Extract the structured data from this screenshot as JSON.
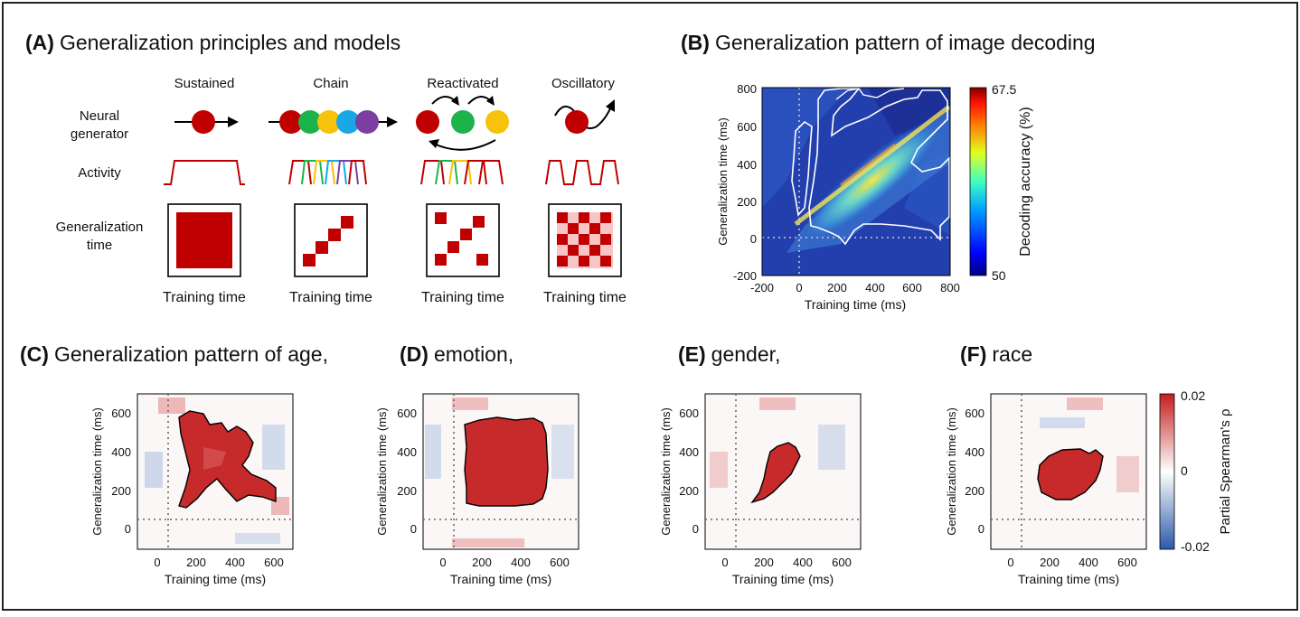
{
  "panelA": {
    "title_letter": "(A)",
    "title_text": "Generalization principles and models",
    "columns": [
      "Sustained",
      "Chain",
      "Reactivated",
      "Oscillatory"
    ],
    "row_labels": {
      "neural_line1": "Neural",
      "neural_line2": "generator",
      "activity": "Activity",
      "gen_line1": "Generalization",
      "gen_line2": "time"
    },
    "xlabel": "Training time",
    "colors": {
      "red": "#c00000",
      "green": "#1db34b",
      "yellow": "#f6c20a",
      "cyan": "#1aa7e6",
      "purple": "#7a3fa0",
      "pink": "#f7c5c5"
    }
  },
  "panelB": {
    "title_letter": "(B)",
    "title_text": "Generalization pattern of image decoding",
    "chart_data": {
      "type": "heatmap",
      "xlabel": "Training time (ms)",
      "ylabel": "Generalization  time (ms)",
      "xticks": [
        "-200",
        "0",
        "200",
        "400",
        "600",
        "800"
      ],
      "yticks": [
        "800",
        "600",
        "400",
        "200",
        "0",
        "-200"
      ],
      "xlim": [
        -200,
        800
      ],
      "ylim": [
        -200,
        800
      ],
      "colorbar_label": "Decoding accuracy (%)",
      "colorbar_ticks": [
        "67.5",
        "50"
      ],
      "colorbar_range": [
        50,
        67.5
      ]
    }
  },
  "subpanels": [
    {
      "id": "C",
      "title_letter": "(C)",
      "title_text": "Generalization pattern of age,"
    },
    {
      "id": "D",
      "title_letter": "(D)",
      "title_text": "emotion,"
    },
    {
      "id": "E",
      "title_letter": "(E)",
      "title_text": "gender,"
    },
    {
      "id": "F",
      "title_letter": "(F)",
      "title_text": "race"
    }
  ],
  "chart_data": [
    {
      "type": "heatmap",
      "name": "C",
      "xlabel": "Training time (ms)",
      "ylabel": "Generalization  time (ms)",
      "xticks": [
        "0",
        "200",
        "400",
        "600"
      ],
      "yticks": [
        "600",
        "400",
        "200",
        "0"
      ],
      "xlim": [
        -100,
        700
      ],
      "ylim": [
        -100,
        700
      ]
    },
    {
      "type": "heatmap",
      "name": "D",
      "xlabel": "Training time (ms)",
      "ylabel": "Generalization  time (ms)",
      "xticks": [
        "0",
        "200",
        "400",
        "600"
      ],
      "yticks": [
        "600",
        "400",
        "200",
        "0"
      ],
      "xlim": [
        -100,
        700
      ],
      "ylim": [
        -100,
        700
      ]
    },
    {
      "type": "heatmap",
      "name": "E",
      "xlabel": "Training time (ms)",
      "ylabel": "Generalization  time (ms)",
      "xticks": [
        "0",
        "200",
        "400",
        "600"
      ],
      "yticks": [
        "600",
        "400",
        "200",
        "0"
      ],
      "xlim": [
        -100,
        700
      ],
      "ylim": [
        -100,
        700
      ]
    },
    {
      "type": "heatmap",
      "name": "F",
      "xlabel": "Training time (ms)",
      "ylabel": "Generalization  time (ms)",
      "xticks": [
        "0",
        "200",
        "400",
        "600"
      ],
      "yticks": [
        "600",
        "400",
        "200",
        "0"
      ],
      "xlim": [
        -100,
        700
      ],
      "ylim": [
        -100,
        700
      ]
    }
  ],
  "colorbarCF": {
    "label": "Partial Spearman's ρ",
    "ticks": [
      "0.02",
      "0",
      "-0.02"
    ],
    "range": [
      -0.02,
      0.02
    ]
  }
}
